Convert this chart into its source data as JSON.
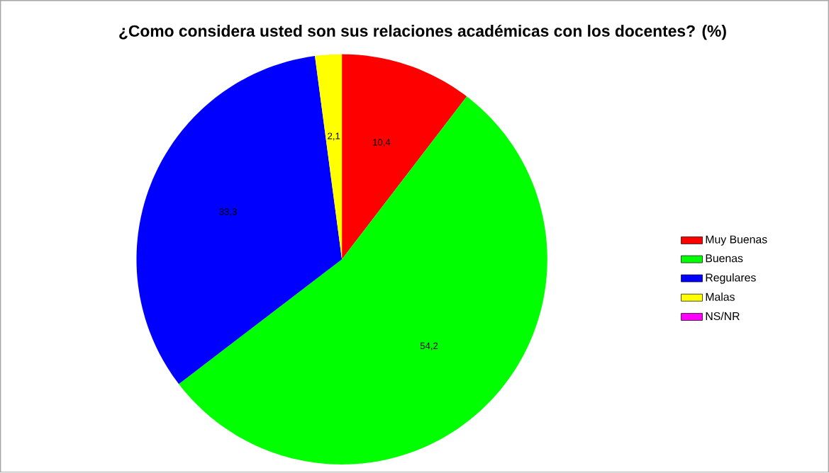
{
  "chart_data": {
    "type": "pie",
    "title": "¿Como considera usted son sus relaciones académicas con los docentes? (%)",
    "categories": [
      "Muy Buenas",
      "Buenas",
      "Regulares",
      "Malas",
      "NS/NR"
    ],
    "values": [
      10.4,
      54.2,
      33.3,
      2.1,
      0
    ],
    "colors": [
      "#ff0000",
      "#00ff00",
      "#0000ff",
      "#ffff00",
      "#ff00ff"
    ],
    "value_labels": [
      "10,4",
      "54,2",
      "33,3",
      "2,1",
      null
    ],
    "legend": "right"
  }
}
